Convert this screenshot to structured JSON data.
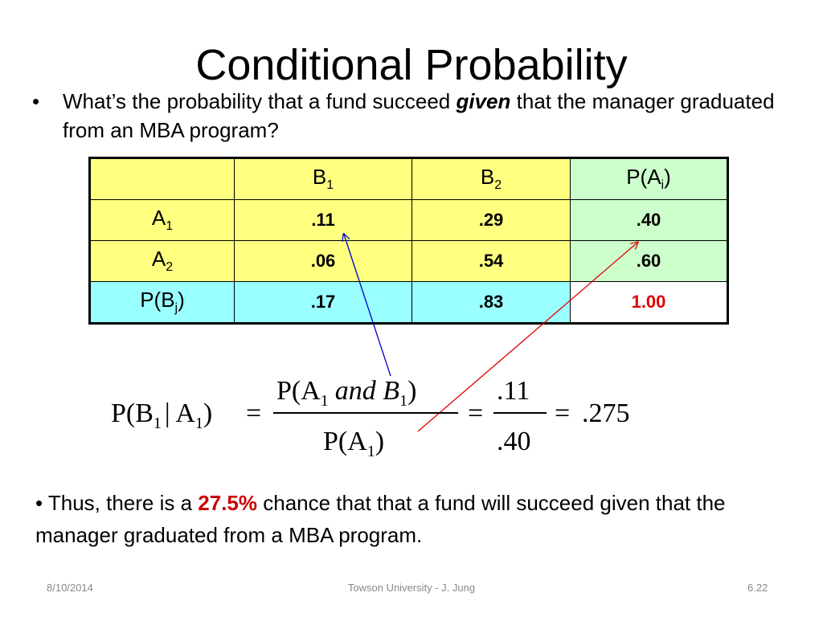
{
  "slide": {
    "title": "Conditional Probability",
    "bullet_marker": "•",
    "question_before": "What’s the probability that a fund succeed ",
    "question_emph": "given",
    "question_after": " that the manager graduated from an MBA program?"
  },
  "table": {
    "header": {
      "b_letter": "B",
      "b1_sub": "1",
      "b2_sub": "2",
      "pa_prefix": "P(A",
      "pa_sub": "i",
      "pa_suffix": ")"
    },
    "rows": [
      {
        "label_letter": "A",
        "label_sub": "1",
        "b1": ".11",
        "b2": ".29",
        "total": ".40"
      },
      {
        "label_letter": "A",
        "label_sub": "2",
        "b1": ".06",
        "b2": ".54",
        "total": ".60"
      }
    ],
    "marginal": {
      "label_prefix": "P(B",
      "label_sub": "j",
      "label_suffix": ")",
      "b1": ".17",
      "b2": ".83",
      "total": "1.00"
    }
  },
  "formula": {
    "lhs_pb": "P(B",
    "lhs_sub1": "1",
    "lhs_bar": "| A",
    "lhs_sub2": "1",
    "lhs_close": ")",
    "eq": "=",
    "num_pa": "P(A",
    "num_sub1": "1",
    "num_and": "and B",
    "num_sub2": "1",
    "num_close": ")",
    "den_pa": "P(A",
    "den_sub": "1",
    "den_close": ")",
    "frac_num": ".11",
    "frac_den": ".40",
    "result": ".275"
  },
  "conclusion": {
    "marker": "•",
    "before": " Thus, there is a ",
    "highlight": "27.5%",
    "after": " chance that that a fund will succeed given that the manager graduated from a MBA program."
  },
  "footer": {
    "date": "8/10/2014",
    "center": "Towson University - J. Jung",
    "page": "6.22"
  },
  "colors": {
    "header_yellow": "#ffff80",
    "total_green": "#ccffcc",
    "marginal_cyan": "#99ffff",
    "emphasis_red": "#e00000",
    "arrow_blue": "#0000cc",
    "arrow_red": "#e00000"
  }
}
